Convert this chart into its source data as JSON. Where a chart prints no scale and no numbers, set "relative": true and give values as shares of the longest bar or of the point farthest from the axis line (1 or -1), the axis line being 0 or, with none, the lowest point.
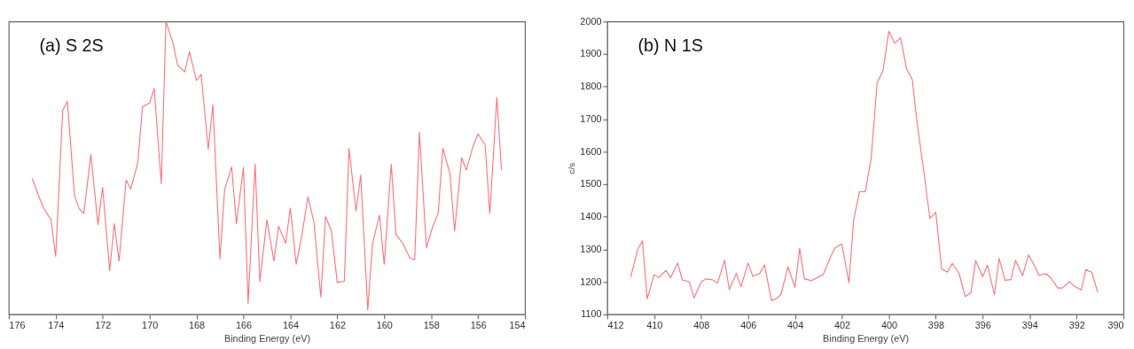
{
  "chart_data": [
    {
      "type": "line",
      "title": "(a) S 2S",
      "xlabel": "Binding Energy (eV)",
      "relative": true,
      "xlim": [
        176,
        154
      ],
      "xticks": [
        176,
        174,
        172,
        170,
        168,
        166,
        164,
        162,
        160,
        158,
        156,
        154
      ],
      "grid": false,
      "marker": "none",
      "line_style": "solid",
      "series": [
        {
          "color": "#ff6f7a",
          "x": [
            175.0,
            174.7,
            174.5,
            174.2,
            174.0,
            173.7,
            173.5,
            173.2,
            173.0,
            172.8,
            172.5,
            172.2,
            172.0,
            171.7,
            171.5,
            171.3,
            171.0,
            170.8,
            170.5,
            170.3,
            170.0,
            169.8,
            169.5,
            169.3,
            169.0,
            168.8,
            168.5,
            168.3,
            168.0,
            167.8,
            167.5,
            167.3,
            167.0,
            166.8,
            166.5,
            166.3,
            166.0,
            165.8,
            165.5,
            165.3,
            165.0,
            164.7,
            164.5,
            164.2,
            164.0,
            163.75,
            163.5,
            163.25,
            163.0,
            162.7,
            162.5,
            162.25,
            162.0,
            161.7,
            161.5,
            161.2,
            161.0,
            160.7,
            160.5,
            160.2,
            160.0,
            159.7,
            159.5,
            159.2,
            158.9,
            158.7,
            158.5,
            158.2,
            157.95,
            157.7,
            157.5,
            157.2,
            157.0,
            156.7,
            156.5,
            156.2,
            156.0,
            155.7,
            155.5,
            155.2,
            155.0
          ],
          "values": [
            0.464,
            0.399,
            0.361,
            0.323,
            0.198,
            0.698,
            0.727,
            0.407,
            0.361,
            0.345,
            0.546,
            0.307,
            0.434,
            0.149,
            0.31,
            0.182,
            0.459,
            0.428,
            0.518,
            0.709,
            0.722,
            0.771,
            0.446,
            1.0,
            0.926,
            0.85,
            0.828,
            0.897,
            0.799,
            0.82,
            0.564,
            0.716,
            0.189,
            0.426,
            0.504,
            0.309,
            0.502,
            0.038,
            0.513,
            0.111,
            0.323,
            0.182,
            0.301,
            0.243,
            0.363,
            0.171,
            0.274,
            0.402,
            0.317,
            0.059,
            0.334,
            0.285,
            0.109,
            0.113,
            0.567,
            0.353,
            0.475,
            0.015,
            0.241,
            0.339,
            0.171,
            0.513,
            0.274,
            0.241,
            0.192,
            0.187,
            0.622,
            0.227,
            0.296,
            0.345,
            0.567,
            0.48,
            0.285,
            0.535,
            0.493,
            0.578,
            0.616,
            0.578,
            0.345,
            0.741,
            0.493
          ]
        }
      ]
    },
    {
      "type": "line",
      "title": "(b) N 1S",
      "xlabel": "Binding Energy (eV)",
      "ylabel": "c/s",
      "xlim": [
        412,
        390
      ],
      "xticks": [
        412,
        410,
        408,
        406,
        404,
        402,
        400,
        398,
        396,
        394,
        392,
        390
      ],
      "ylim": [
        1100,
        2000
      ],
      "yticks": [
        1100,
        1200,
        1300,
        1400,
        1500,
        1600,
        1700,
        1800,
        1900,
        2000
      ],
      "grid": false,
      "marker": "none",
      "line_style": "solid",
      "series": [
        {
          "color": "#ff6f7a",
          "x": [
            411.0,
            410.7,
            410.5,
            410.3,
            410.0,
            409.8,
            409.5,
            409.3,
            409.0,
            408.8,
            408.5,
            408.3,
            408.0,
            407.8,
            407.5,
            407.3,
            407.0,
            406.8,
            406.5,
            406.3,
            406.0,
            405.8,
            405.5,
            405.3,
            405.0,
            404.8,
            404.6,
            404.3,
            404.0,
            403.8,
            403.6,
            403.3,
            403.0,
            402.8,
            402.5,
            402.3,
            402.0,
            401.7,
            401.5,
            401.25,
            401.0,
            400.75,
            400.5,
            400.25,
            400.0,
            399.75,
            399.5,
            399.25,
            399.0,
            398.8,
            398.5,
            398.25,
            398.0,
            397.75,
            397.5,
            397.3,
            397.0,
            396.75,
            396.5,
            396.3,
            396.0,
            395.8,
            395.5,
            395.3,
            395.05,
            394.8,
            394.6,
            394.3,
            394.05,
            393.8,
            393.6,
            393.3,
            393.1,
            392.8,
            392.6,
            392.3,
            392.1,
            391.8,
            391.6,
            391.35,
            391.1
          ],
          "values": [
            1215,
            1300,
            1326,
            1148,
            1222,
            1213,
            1235,
            1213,
            1258,
            1206,
            1200,
            1150,
            1200,
            1209,
            1206,
            1196,
            1267,
            1176,
            1226,
            1185,
            1258,
            1217,
            1226,
            1252,
            1143,
            1148,
            1161,
            1246,
            1183,
            1303,
            1209,
            1204,
            1215,
            1222,
            1274,
            1304,
            1316,
            1197,
            1390,
            1477,
            1477,
            1582,
            1811,
            1849,
            1970,
            1933,
            1950,
            1856,
            1821,
            1691,
            1534,
            1395,
            1414,
            1240,
            1230,
            1257,
            1225,
            1155,
            1166,
            1266,
            1216,
            1251,
            1161,
            1272,
            1205,
            1207,
            1266,
            1219,
            1283,
            1251,
            1220,
            1225,
            1212,
            1181,
            1181,
            1201,
            1187,
            1175,
            1238,
            1229,
            1168
          ]
        }
      ]
    }
  ]
}
